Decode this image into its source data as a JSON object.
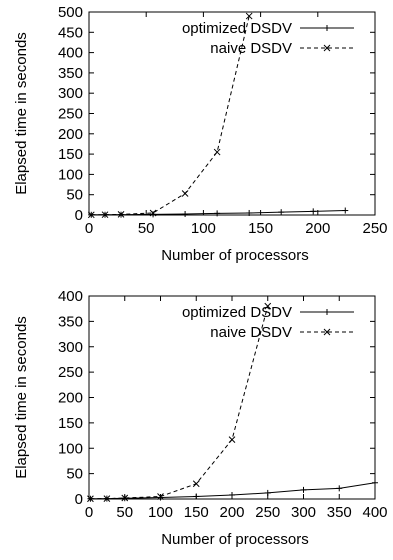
{
  "chart_data": [
    {
      "type": "line",
      "xlabel": "Number of processors",
      "ylabel": "Elapsed time in seconds",
      "xlim": [
        0,
        250
      ],
      "ylim": [
        0,
        500
      ],
      "xticks": [
        0,
        50,
        100,
        150,
        200,
        250
      ],
      "yticks": [
        0,
        50,
        100,
        150,
        200,
        250,
        300,
        350,
        400,
        450,
        500
      ],
      "grid": false,
      "legend_position": "top-right",
      "series": [
        {
          "name": "optimized DSDV",
          "line_style": "solid",
          "marker": "plus",
          "color": "#000000",
          "points": [
            [
              2,
              0.5
            ],
            [
              14,
              0.6
            ],
            [
              28,
              0.8
            ],
            [
              56,
              1.5
            ],
            [
              84,
              2.5
            ],
            [
              112,
              4
            ],
            [
              140,
              5
            ],
            [
              168,
              7
            ],
            [
              196,
              9
            ],
            [
              224,
              11
            ]
          ]
        },
        {
          "name": "naive DSDV",
          "line_style": "dashed",
          "marker": "x",
          "color": "#000000",
          "points": [
            [
              2,
              0.5
            ],
            [
              14,
              0.8
            ],
            [
              28,
              1.5
            ],
            [
              56,
              5
            ],
            [
              84,
              53
            ],
            [
              112,
              155
            ],
            [
              140,
              490
            ]
          ]
        }
      ]
    },
    {
      "type": "line",
      "xlabel": "Number of processors",
      "ylabel": "Elapsed time in seconds",
      "xlim": [
        0,
        400
      ],
      "ylim": [
        0,
        400
      ],
      "xticks": [
        0,
        50,
        100,
        150,
        200,
        250,
        300,
        350,
        400
      ],
      "yticks": [
        0,
        50,
        100,
        150,
        200,
        250,
        300,
        350,
        400
      ],
      "grid": false,
      "legend_position": "top-right",
      "series": [
        {
          "name": "optimized DSDV",
          "line_style": "solid",
          "marker": "plus",
          "color": "#000000",
          "points": [
            [
              2,
              0.5
            ],
            [
              25,
              0.8
            ],
            [
              50,
              1.5
            ],
            [
              100,
              3
            ],
            [
              150,
              5
            ],
            [
              200,
              8
            ],
            [
              250,
              12
            ],
            [
              300,
              18
            ],
            [
              350,
              21
            ],
            [
              400,
              32
            ]
          ]
        },
        {
          "name": "naive DSDV",
          "line_style": "dashed",
          "marker": "x",
          "color": "#000000",
          "points": [
            [
              2,
              0.5
            ],
            [
              25,
              0.8
            ],
            [
              50,
              2
            ],
            [
              100,
              5
            ],
            [
              150,
              30
            ],
            [
              200,
              117
            ],
            [
              250,
              380
            ]
          ]
        }
      ]
    }
  ]
}
